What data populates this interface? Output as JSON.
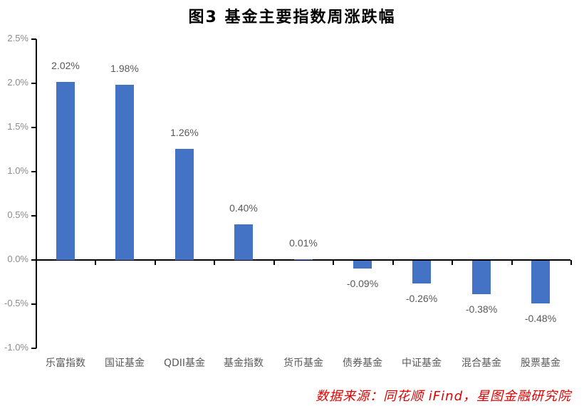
{
  "chart_data": {
    "type": "bar",
    "title": "图3  基金主要指数周涨跌幅",
    "xlabel": "",
    "ylabel": "",
    "ylim": [
      -0.01,
      0.025
    ],
    "yticks": [
      "2.5%",
      "2.0%",
      "1.5%",
      "1.0%",
      "0.5%",
      "0.0%",
      "-0.5%",
      "-1.0%"
    ],
    "grid": false,
    "legend": null,
    "categories": [
      "乐富指数",
      "国证基金",
      "QDII基金",
      "基金指数",
      "货币基金",
      "债券基金",
      "中证基金",
      "混合基金",
      "股票基金"
    ],
    "values": [
      2.02,
      1.98,
      1.26,
      0.4,
      0.01,
      -0.09,
      -0.26,
      -0.38,
      -0.48
    ],
    "value_labels": [
      "2.02%",
      "1.98%",
      "1.26%",
      "0.40%",
      "0.01%",
      "-0.09%",
      "-0.26%",
      "-0.38%",
      "-0.48%"
    ],
    "unit": "%",
    "bar_color": "#4472c4",
    "source": "数据来源：同花顺 iFind，星图金融研究院"
  }
}
